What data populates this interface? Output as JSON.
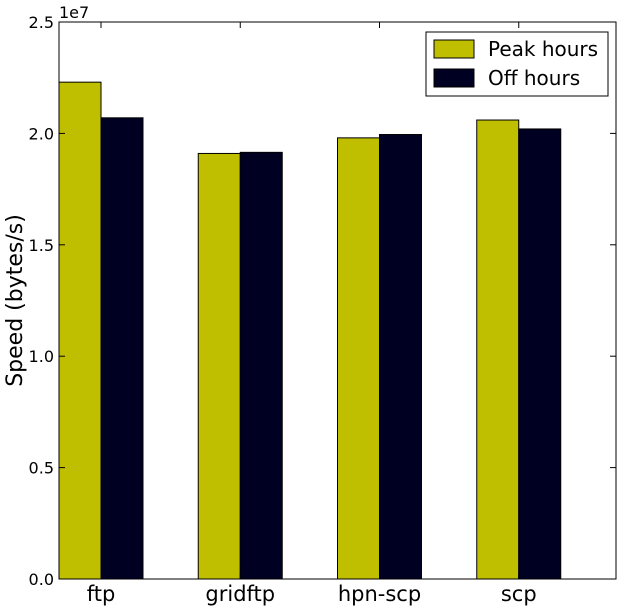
{
  "chart_data": {
    "type": "bar",
    "title": "",
    "xlabel": "",
    "ylabel": "Speed (bytes/s)",
    "scale_note": "1e7",
    "categories": [
      "ftp",
      "gridftp",
      "hpn-scp",
      "scp"
    ],
    "ylim": [
      0,
      25000000
    ],
    "yticks": [
      0,
      5000000,
      10000000,
      15000000,
      20000000,
      25000000
    ],
    "ytick_labels": [
      "0.0",
      "0.5",
      "1.0",
      "1.5",
      "2.0",
      "2.5"
    ],
    "grid": false,
    "legend_position": "top-right",
    "series": [
      {
        "name": "Peak hours",
        "color": "#bfbf00",
        "values": [
          22300000,
          19100000,
          19800000,
          20600000
        ]
      },
      {
        "name": "Off hours",
        "color": "#000022",
        "values": [
          20700000,
          19150000,
          19950000,
          20200000
        ]
      }
    ]
  }
}
